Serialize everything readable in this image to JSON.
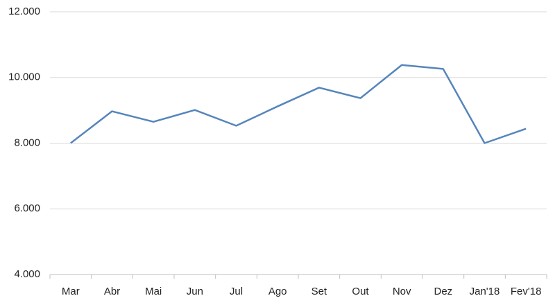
{
  "chart_data": {
    "type": "line",
    "categories": [
      "Mar",
      "Abr",
      "Mai",
      "Jun",
      "Jul",
      "Ago",
      "Set",
      "Out",
      "Nov",
      "Dez",
      "Jan'18",
      "Fev'18"
    ],
    "series": [
      {
        "color": "#5585bb",
        "values": [
          8000,
          8970,
          8650,
          9010,
          8530,
          9120,
          9690,
          9370,
          10380,
          10260,
          8000,
          8440
        ]
      }
    ],
    "ylim": [
      4000,
      12000
    ],
    "yticks": [
      {
        "value": 4000,
        "label": "4.000"
      },
      {
        "value": 6000,
        "label": "6.000"
      },
      {
        "value": 8000,
        "label": "8.000"
      },
      {
        "value": 10000,
        "label": "10.000"
      },
      {
        "value": 12000,
        "label": "12.000"
      }
    ],
    "grid": true
  }
}
